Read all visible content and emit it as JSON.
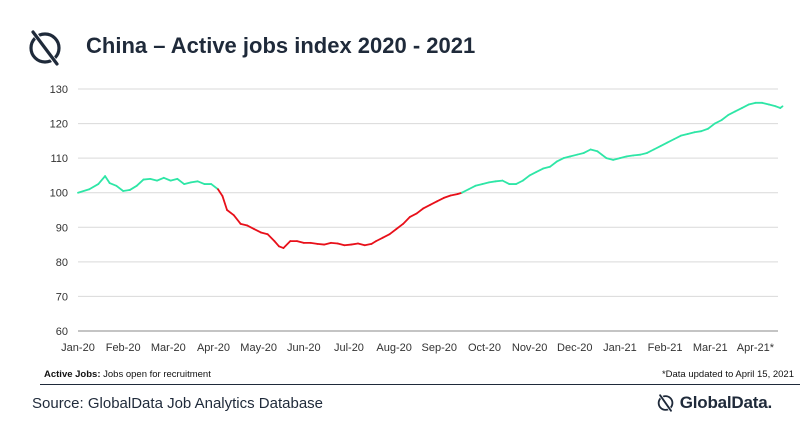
{
  "title": "China – Active jobs index 2020 - 2021",
  "footnote_left_bold": "Active Jobs:",
  "footnote_left_text": " Jobs open for recruitment",
  "footnote_right": "*Data updated to April 15, 2021",
  "source": "Source: GlobalData Job Analytics Database",
  "brand": "GlobalData.",
  "colors": {
    "up": "#2ee6a6",
    "down": "#e8101a",
    "title": "#1f2a3a"
  },
  "chart_data": {
    "type": "line",
    "title": "China – Active jobs index 2020 - 2021",
    "xlabel": "",
    "ylabel": "",
    "ylim": [
      60,
      130
    ],
    "yticks": [
      60,
      70,
      80,
      90,
      100,
      110,
      120,
      130
    ],
    "grid": "horizontal",
    "x_unit": "month index (0 = Jan-20)",
    "xlim": [
      0,
      15.5
    ],
    "month_labels": [
      "Jan-20",
      "Feb-20",
      "Mar-20",
      "Apr-20",
      "May-20",
      "Jun-20",
      "Jul-20",
      "Aug-20",
      "Sep-20",
      "Oct-20",
      "Nov-20",
      "Dec-20",
      "Jan-21",
      "Feb-21",
      "Mar-21",
      "Apr-21*"
    ],
    "series": [
      {
        "color_rule": "green when index >= 100 and rising, red when below 100 (Apr-20 to Sep-20)",
        "points": [
          [
            0,
            100
          ],
          [
            0.25,
            101
          ],
          [
            0.45,
            102.5
          ],
          [
            0.6,
            104.8
          ],
          [
            0.7,
            102.8
          ],
          [
            0.85,
            102
          ],
          [
            1.0,
            100.5
          ],
          [
            1.15,
            100.8
          ],
          [
            1.3,
            102
          ],
          [
            1.45,
            103.8
          ],
          [
            1.6,
            104
          ],
          [
            1.75,
            103.5
          ],
          [
            1.9,
            104.3
          ],
          [
            2.05,
            103.5
          ],
          [
            2.2,
            104
          ],
          [
            2.35,
            102.5
          ],
          [
            2.5,
            103
          ],
          [
            2.65,
            103.3
          ],
          [
            2.8,
            102.5
          ],
          [
            2.95,
            102.5
          ],
          [
            3.1,
            101
          ],
          [
            3.2,
            99
          ],
          [
            3.3,
            95
          ],
          [
            3.45,
            93.5
          ],
          [
            3.6,
            91
          ],
          [
            3.75,
            90.5
          ],
          [
            3.9,
            89.5
          ],
          [
            4.05,
            88.5
          ],
          [
            4.2,
            88
          ],
          [
            4.35,
            86
          ],
          [
            4.45,
            84.5
          ],
          [
            4.55,
            84
          ],
          [
            4.7,
            86
          ],
          [
            4.85,
            86
          ],
          [
            5.0,
            85.5
          ],
          [
            5.15,
            85.5
          ],
          [
            5.3,
            85.2
          ],
          [
            5.45,
            85
          ],
          [
            5.6,
            85.5
          ],
          [
            5.75,
            85.3
          ],
          [
            5.9,
            84.8
          ],
          [
            6.05,
            85
          ],
          [
            6.2,
            85.3
          ],
          [
            6.35,
            84.8
          ],
          [
            6.5,
            85.2
          ],
          [
            6.6,
            86
          ],
          [
            6.75,
            87
          ],
          [
            6.9,
            88
          ],
          [
            7.05,
            89.5
          ],
          [
            7.2,
            91
          ],
          [
            7.35,
            93
          ],
          [
            7.5,
            94
          ],
          [
            7.65,
            95.5
          ],
          [
            7.8,
            96.5
          ],
          [
            7.95,
            97.5
          ],
          [
            8.1,
            98.5
          ],
          [
            8.25,
            99.2
          ],
          [
            8.4,
            99.6
          ],
          [
            8.5,
            100
          ],
          [
            8.65,
            101
          ],
          [
            8.8,
            102
          ],
          [
            8.95,
            102.5
          ],
          [
            9.1,
            103
          ],
          [
            9.25,
            103.3
          ],
          [
            9.4,
            103.5
          ],
          [
            9.55,
            102.5
          ],
          [
            9.7,
            102.5
          ],
          [
            9.85,
            103.5
          ],
          [
            10.0,
            105
          ],
          [
            10.15,
            106
          ],
          [
            10.3,
            107
          ],
          [
            10.45,
            107.5
          ],
          [
            10.6,
            109
          ],
          [
            10.75,
            110
          ],
          [
            10.9,
            110.5
          ],
          [
            11.05,
            111
          ],
          [
            11.2,
            111.5
          ],
          [
            11.35,
            112.5
          ],
          [
            11.5,
            112
          ],
          [
            11.6,
            111
          ],
          [
            11.7,
            110
          ],
          [
            11.85,
            109.5
          ],
          [
            12.0,
            110
          ],
          [
            12.15,
            110.5
          ],
          [
            12.3,
            110.8
          ],
          [
            12.45,
            111
          ],
          [
            12.6,
            111.5
          ],
          [
            12.75,
            112.5
          ],
          [
            12.9,
            113.5
          ],
          [
            13.05,
            114.5
          ],
          [
            13.2,
            115.5
          ],
          [
            13.35,
            116.5
          ],
          [
            13.5,
            117
          ],
          [
            13.65,
            117.5
          ],
          [
            13.8,
            117.8
          ],
          [
            13.95,
            118.5
          ],
          [
            14.1,
            120
          ],
          [
            14.25,
            121
          ],
          [
            14.4,
            122.5
          ],
          [
            14.55,
            123.5
          ],
          [
            14.7,
            124.5
          ],
          [
            14.85,
            125.5
          ],
          [
            15.0,
            126
          ],
          [
            15.15,
            126
          ],
          [
            15.3,
            125.5
          ],
          [
            15.45,
            125
          ],
          [
            15.55,
            124.5
          ],
          [
            15.6,
            125
          ]
        ]
      }
    ]
  }
}
